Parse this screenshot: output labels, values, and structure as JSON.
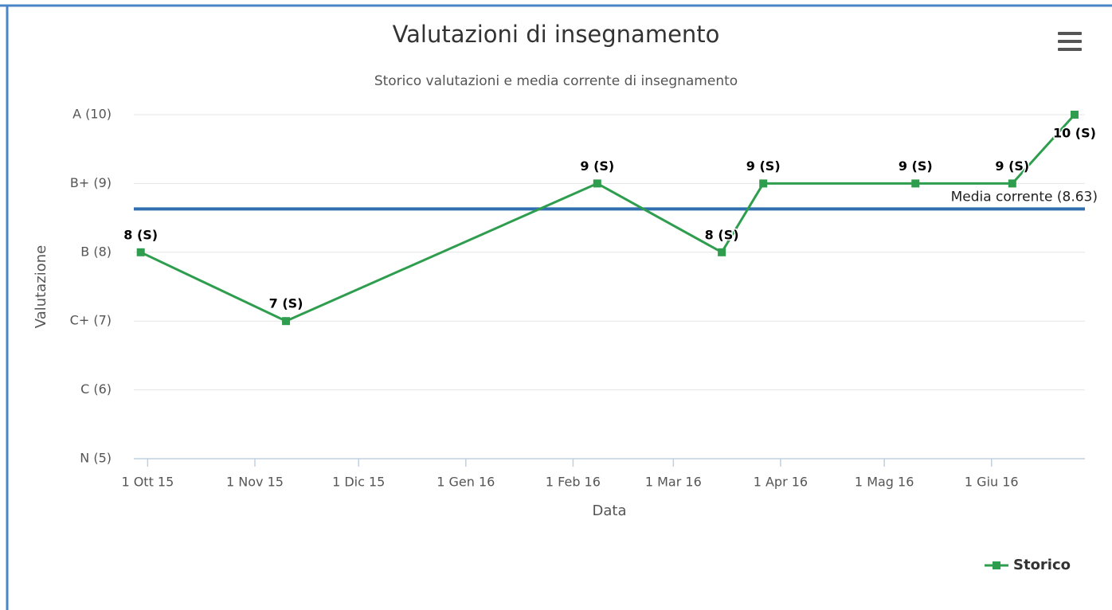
{
  "chart_data": {
    "type": "line",
    "title": "Valutazioni di insegnamento",
    "subtitle": "Storico valutazioni e media corrente di insegnamento",
    "x_label": "Data",
    "y_label": "Valutazione",
    "x": [
      "2015-09-29",
      "2015-11-10",
      "2016-02-08",
      "2016-03-15",
      "2016-03-27",
      "2016-05-10",
      "2016-06-07",
      "2016-06-25"
    ],
    "series": [
      {
        "name": "Storico",
        "color": "#2e9e4e",
        "values": [
          8,
          7,
          9,
          8,
          9,
          9,
          9,
          10
        ],
        "value_labels": [
          "8 (S)",
          "7 (S)",
          "9 (S)",
          "8 (S)",
          "9 (S)",
          "9 (S)",
          "9 (S)",
          "10 (S)"
        ]
      }
    ],
    "xlim": [
      "2015-09-27",
      "2016-06-28"
    ],
    "xticks": [
      {
        "value": "2015-10-01",
        "label": "1 Ott 15"
      },
      {
        "value": "2015-11-01",
        "label": "1 Nov 15"
      },
      {
        "value": "2015-12-01",
        "label": "1 Dic 15"
      },
      {
        "value": "2016-01-01",
        "label": "1 Gen 16"
      },
      {
        "value": "2016-02-01",
        "label": "1 Feb 16"
      },
      {
        "value": "2016-03-01",
        "label": "1 Mar 16"
      },
      {
        "value": "2016-04-01",
        "label": "1 Apr 16"
      },
      {
        "value": "2016-05-01",
        "label": "1 Mag 16"
      },
      {
        "value": "2016-06-01",
        "label": "1 Giu 16"
      }
    ],
    "ylim": [
      5,
      10
    ],
    "yticks": [
      {
        "value": 5,
        "label": "N (5)"
      },
      {
        "value": 6,
        "label": "C (6)"
      },
      {
        "value": 7,
        "label": "C+ (7)"
      },
      {
        "value": 8,
        "label": "B (8)"
      },
      {
        "value": 9,
        "label": "B+ (9)"
      },
      {
        "value": 10,
        "label": "A (10)"
      }
    ],
    "plot_lines": [
      {
        "value": 8.63,
        "label": "Media corrente (8.63)",
        "color": "#2f6fb0"
      }
    ],
    "grid": true,
    "legend": "bottom-right"
  }
}
